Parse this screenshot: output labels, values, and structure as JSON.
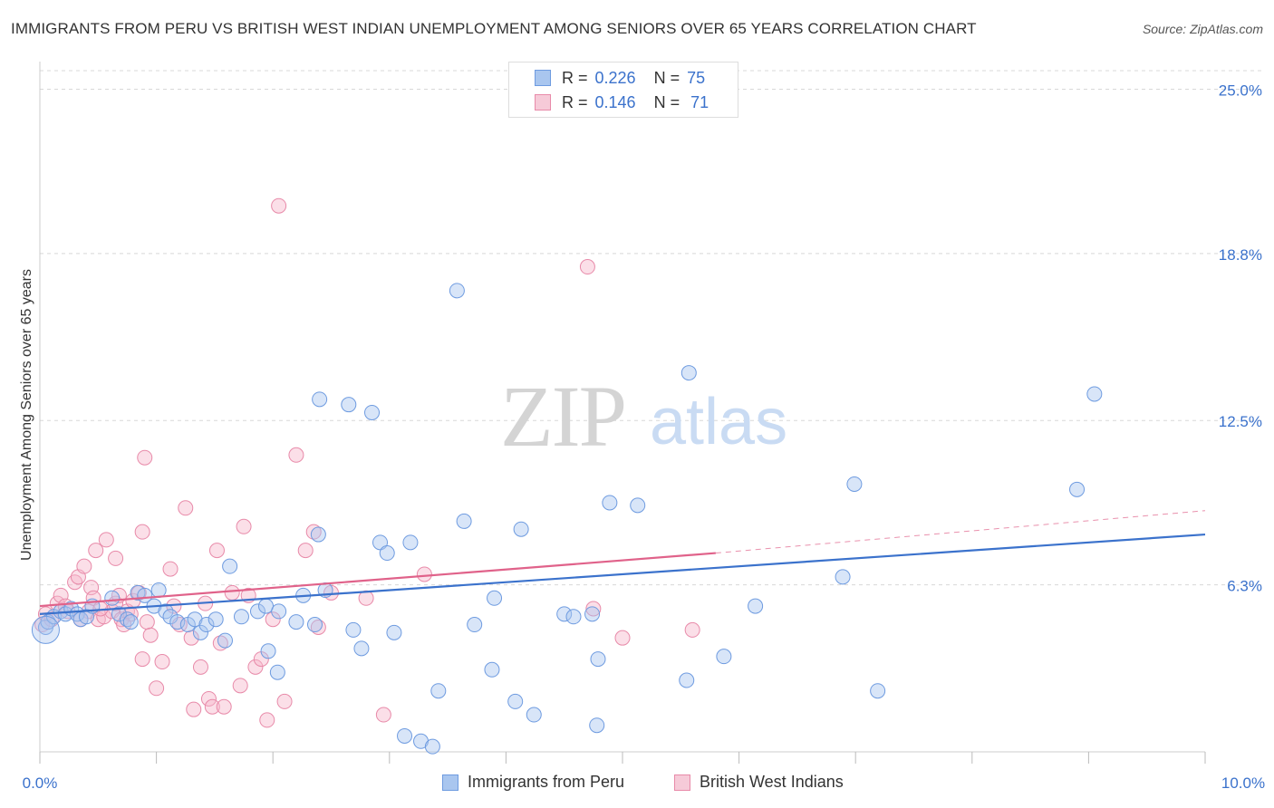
{
  "title": "IMMIGRANTS FROM PERU VS BRITISH WEST INDIAN UNEMPLOYMENT AMONG SENIORS OVER 65 YEARS CORRELATION CHART",
  "source": "Source: ZipAtlas.com",
  "watermark": {
    "zip": "ZIP",
    "atlas": "atlas"
  },
  "stats_legend": {
    "r_label": "R =",
    "n_label": "N =",
    "rows": [
      {
        "r": "0.226",
        "n": "75"
      },
      {
        "r": "0.146",
        "n": "71"
      }
    ]
  },
  "bottom_legend": [
    "Immigrants from Peru",
    "British West Indians"
  ],
  "colors": {
    "blue_fill": "#a9c6ef",
    "blue_stroke": "#6e9be0",
    "blue_line": "#3b72cc",
    "pink_fill": "#f6b8cc",
    "pink_stroke": "#e88aa9",
    "pink_line": "#e0628a",
    "tick_label": "#3b72cc",
    "grid": "#d8d8d8"
  },
  "chart_data": {
    "type": "scatter",
    "title": "IMMIGRANTS FROM PERU VS BRITISH WEST INDIAN UNEMPLOYMENT AMONG SENIORS OVER 65 YEARS CORRELATION CHART",
    "xlabel": "",
    "ylabel": "Unemployment Among Seniors over 65 years",
    "xlim": [
      0,
      10
    ],
    "ylim": [
      0,
      25.7
    ],
    "x_tick_labels": [
      "0.0%",
      "10.0%"
    ],
    "y_ticks": [
      6.3,
      12.5,
      18.8,
      25.0
    ],
    "y_tick_labels": [
      "6.3%",
      "12.5%",
      "18.8%",
      "25.0%"
    ],
    "grid": true,
    "legend": "top-center",
    "series": [
      {
        "name": "Immigrants from Peru",
        "color": "#a9c6ef",
        "trend": {
          "x": [
            0,
            10
          ],
          "y": [
            5.2,
            8.2
          ]
        },
        "points": [
          [
            0.05,
            4.7
          ],
          [
            0.07,
            4.9
          ],
          [
            0.12,
            5.1
          ],
          [
            0.18,
            5.3
          ],
          [
            0.22,
            5.2
          ],
          [
            0.27,
            5.4
          ],
          [
            0.32,
            5.2
          ],
          [
            0.35,
            5.0
          ],
          [
            0.4,
            5.1
          ],
          [
            0.45,
            5.5
          ],
          [
            0.62,
            5.8
          ],
          [
            0.68,
            5.2
          ],
          [
            0.75,
            5.0
          ],
          [
            0.78,
            4.9
          ],
          [
            0.84,
            6.0
          ],
          [
            0.9,
            5.9
          ],
          [
            0.98,
            5.5
          ],
          [
            1.02,
            6.1
          ],
          [
            1.08,
            5.3
          ],
          [
            1.12,
            5.1
          ],
          [
            1.18,
            4.9
          ],
          [
            1.27,
            4.8
          ],
          [
            1.33,
            5.0
          ],
          [
            1.38,
            4.5
          ],
          [
            1.43,
            4.8
          ],
          [
            1.51,
            5.0
          ],
          [
            1.59,
            4.2
          ],
          [
            1.63,
            7.0
          ],
          [
            1.73,
            5.1
          ],
          [
            1.87,
            5.3
          ],
          [
            1.94,
            5.5
          ],
          [
            1.96,
            3.8
          ],
          [
            2.04,
            3.0
          ],
          [
            2.05,
            5.3
          ],
          [
            2.2,
            4.9
          ],
          [
            2.26,
            5.9
          ],
          [
            2.36,
            4.8
          ],
          [
            2.39,
            8.2
          ],
          [
            2.45,
            6.1
          ],
          [
            2.4,
            13.3
          ],
          [
            2.65,
            13.1
          ],
          [
            2.69,
            4.6
          ],
          [
            2.76,
            3.9
          ],
          [
            2.85,
            12.8
          ],
          [
            2.92,
            7.9
          ],
          [
            2.98,
            7.5
          ],
          [
            3.04,
            4.5
          ],
          [
            3.13,
            0.6
          ],
          [
            3.18,
            7.9
          ],
          [
            3.27,
            0.4
          ],
          [
            3.37,
            0.2
          ],
          [
            3.42,
            2.3
          ],
          [
            3.58,
            17.4
          ],
          [
            3.64,
            8.7
          ],
          [
            3.73,
            4.8
          ],
          [
            3.88,
            3.1
          ],
          [
            3.9,
            5.8
          ],
          [
            4.08,
            1.9
          ],
          [
            4.13,
            8.4
          ],
          [
            4.24,
            1.4
          ],
          [
            4.5,
            5.2
          ],
          [
            4.58,
            5.1
          ],
          [
            4.74,
            5.2
          ],
          [
            4.78,
            1.0
          ],
          [
            4.79,
            3.5
          ],
          [
            4.89,
            9.4
          ],
          [
            5.13,
            9.3
          ],
          [
            5.55,
            2.7
          ],
          [
            5.57,
            14.3
          ],
          [
            5.87,
            3.6
          ],
          [
            6.14,
            5.5
          ],
          [
            6.89,
            6.6
          ],
          [
            6.99,
            10.1
          ],
          [
            7.19,
            2.3
          ],
          [
            8.9,
            9.9
          ],
          [
            9.05,
            13.5
          ]
        ]
      },
      {
        "name": "British West Indians",
        "color": "#f6b8cc",
        "trend": {
          "x": [
            0,
            5.8
          ],
          "y": [
            5.5,
            7.5
          ]
        },
        "trend_dashed": {
          "x": [
            5.8,
            10
          ],
          "y": [
            7.5,
            9.1
          ]
        },
        "points": [
          [
            0.02,
            4.8
          ],
          [
            0.05,
            5.2
          ],
          [
            0.1,
            5.0
          ],
          [
            0.15,
            5.6
          ],
          [
            0.18,
            5.9
          ],
          [
            0.24,
            5.3
          ],
          [
            0.3,
            6.4
          ],
          [
            0.33,
            6.6
          ],
          [
            0.38,
            7.0
          ],
          [
            0.42,
            5.3
          ],
          [
            0.44,
            6.2
          ],
          [
            0.46,
            5.8
          ],
          [
            0.48,
            7.6
          ],
          [
            0.5,
            5.0
          ],
          [
            0.55,
            5.1
          ],
          [
            0.57,
            8.0
          ],
          [
            0.62,
            5.3
          ],
          [
            0.65,
            5.6
          ],
          [
            0.65,
            7.3
          ],
          [
            0.68,
            5.9
          ],
          [
            0.7,
            5.0
          ],
          [
            0.75,
            5.3
          ],
          [
            0.78,
            5.2
          ],
          [
            0.8,
            5.7
          ],
          [
            0.85,
            6.0
          ],
          [
            0.88,
            8.3
          ],
          [
            0.88,
            3.5
          ],
          [
            0.9,
            11.1
          ],
          [
            0.92,
            4.9
          ],
          [
            0.95,
            4.4
          ],
          [
            1.0,
            2.4
          ],
          [
            1.05,
            3.4
          ],
          [
            1.12,
            6.9
          ],
          [
            1.15,
            5.5
          ],
          [
            1.2,
            4.8
          ],
          [
            1.25,
            9.2
          ],
          [
            1.3,
            4.3
          ],
          [
            1.32,
            1.6
          ],
          [
            1.38,
            3.2
          ],
          [
            1.42,
            5.6
          ],
          [
            1.45,
            2.0
          ],
          [
            1.48,
            1.7
          ],
          [
            1.52,
            7.6
          ],
          [
            1.55,
            4.1
          ],
          [
            1.58,
            1.7
          ],
          [
            1.65,
            6.0
          ],
          [
            1.72,
            2.5
          ],
          [
            1.75,
            8.5
          ],
          [
            1.79,
            5.9
          ],
          [
            1.85,
            3.2
          ],
          [
            1.9,
            3.5
          ],
          [
            1.95,
            1.2
          ],
          [
            2.0,
            5.0
          ],
          [
            2.05,
            20.6
          ],
          [
            2.1,
            1.9
          ],
          [
            2.2,
            11.2
          ],
          [
            2.28,
            7.6
          ],
          [
            2.35,
            8.3
          ],
          [
            2.39,
            4.7
          ],
          [
            2.5,
            6.0
          ],
          [
            2.8,
            5.8
          ],
          [
            2.95,
            1.4
          ],
          [
            3.3,
            6.7
          ],
          [
            4.7,
            18.3
          ],
          [
            4.75,
            5.4
          ],
          [
            5.0,
            4.3
          ],
          [
            5.6,
            4.6
          ],
          [
            0.22,
            5.5
          ],
          [
            0.35,
            5.0
          ],
          [
            0.52,
            5.4
          ],
          [
            0.72,
            4.8
          ]
        ]
      }
    ]
  }
}
